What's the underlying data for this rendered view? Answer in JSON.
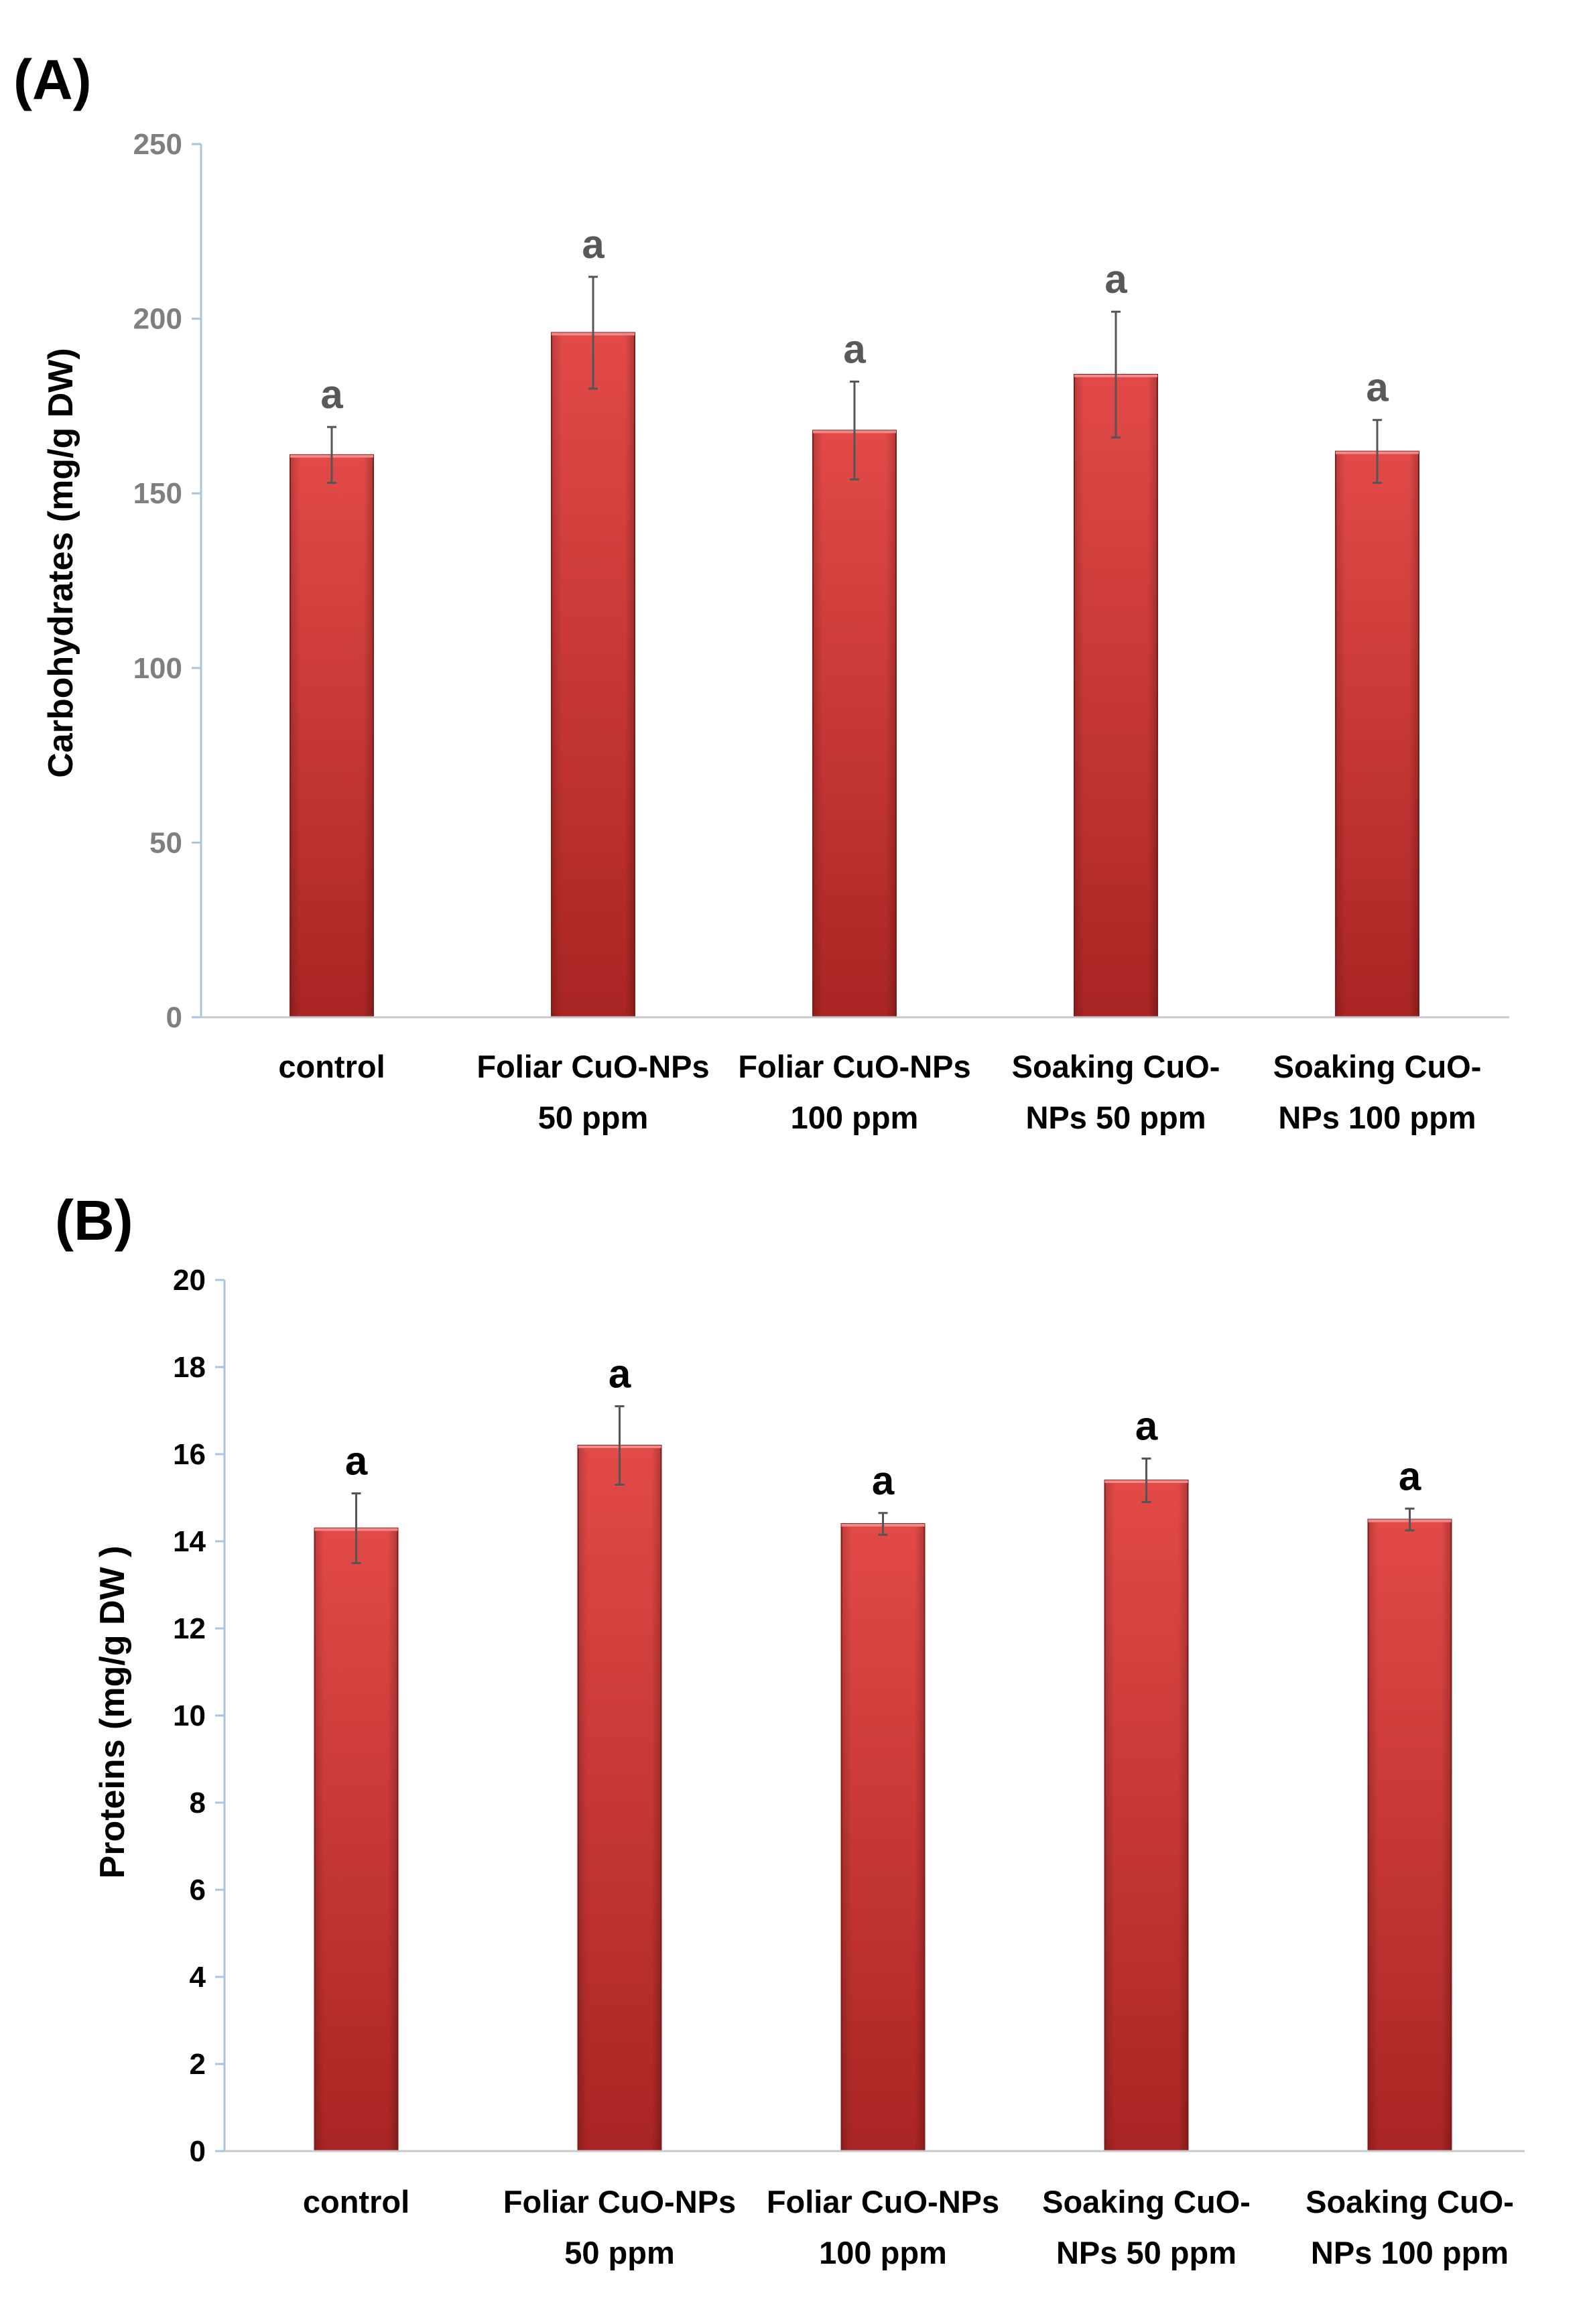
{
  "chart_data": [
    {
      "panel": "(A)",
      "type": "bar",
      "title": "",
      "xlabel": "",
      "ylabel": "Carbohydrates (mg/g  DW)",
      "ylim": [
        0,
        250
      ],
      "yticks": [
        "0",
        "50",
        "100",
        "150",
        "200",
        "250"
      ],
      "categories": [
        [
          "control"
        ],
        [
          "Foliar CuO-NPs",
          "50 ppm"
        ],
        [
          "Foliar CuO-NPs",
          "100 ppm"
        ],
        [
          "Soaking CuO-",
          "NPs 50 ppm"
        ],
        [
          "Soaking CuO-",
          "NPs 100 ppm"
        ]
      ],
      "values": [
        161,
        196,
        168,
        184,
        162
      ],
      "error": [
        8,
        16,
        14,
        18,
        9
      ],
      "significance": [
        "a",
        "a",
        "a",
        "a",
        "a"
      ],
      "grid": false,
      "legend": "none",
      "bar_color": "#c8302f",
      "tick_color": "#7f7f7f",
      "sig_color": "#595959"
    },
    {
      "panel": "(B)",
      "type": "bar",
      "title": "",
      "xlabel": "",
      "ylabel": "Proteins (mg/g DW )",
      "ylim": [
        0,
        20
      ],
      "yticks": [
        "0",
        "2",
        "4",
        "6",
        "8",
        "10",
        "12",
        "14",
        "16",
        "18",
        "20"
      ],
      "categories": [
        [
          "control"
        ],
        [
          "Foliar CuO-NPs",
          "50 ppm"
        ],
        [
          "Foliar CuO-NPs",
          "100 ppm"
        ],
        [
          "Soaking CuO-",
          "NPs 50 ppm"
        ],
        [
          "Soaking CuO-",
          "NPs 100 ppm"
        ]
      ],
      "values": [
        14.3,
        16.2,
        14.4,
        15.4,
        14.5
      ],
      "error": [
        0.8,
        0.9,
        0.25,
        0.5,
        0.25
      ],
      "significance": [
        "a",
        "a",
        "a",
        "a",
        "a"
      ],
      "grid": false,
      "legend": "none",
      "bar_color": "#c8302f",
      "tick_color": "#000000",
      "sig_color": "#000000"
    }
  ]
}
